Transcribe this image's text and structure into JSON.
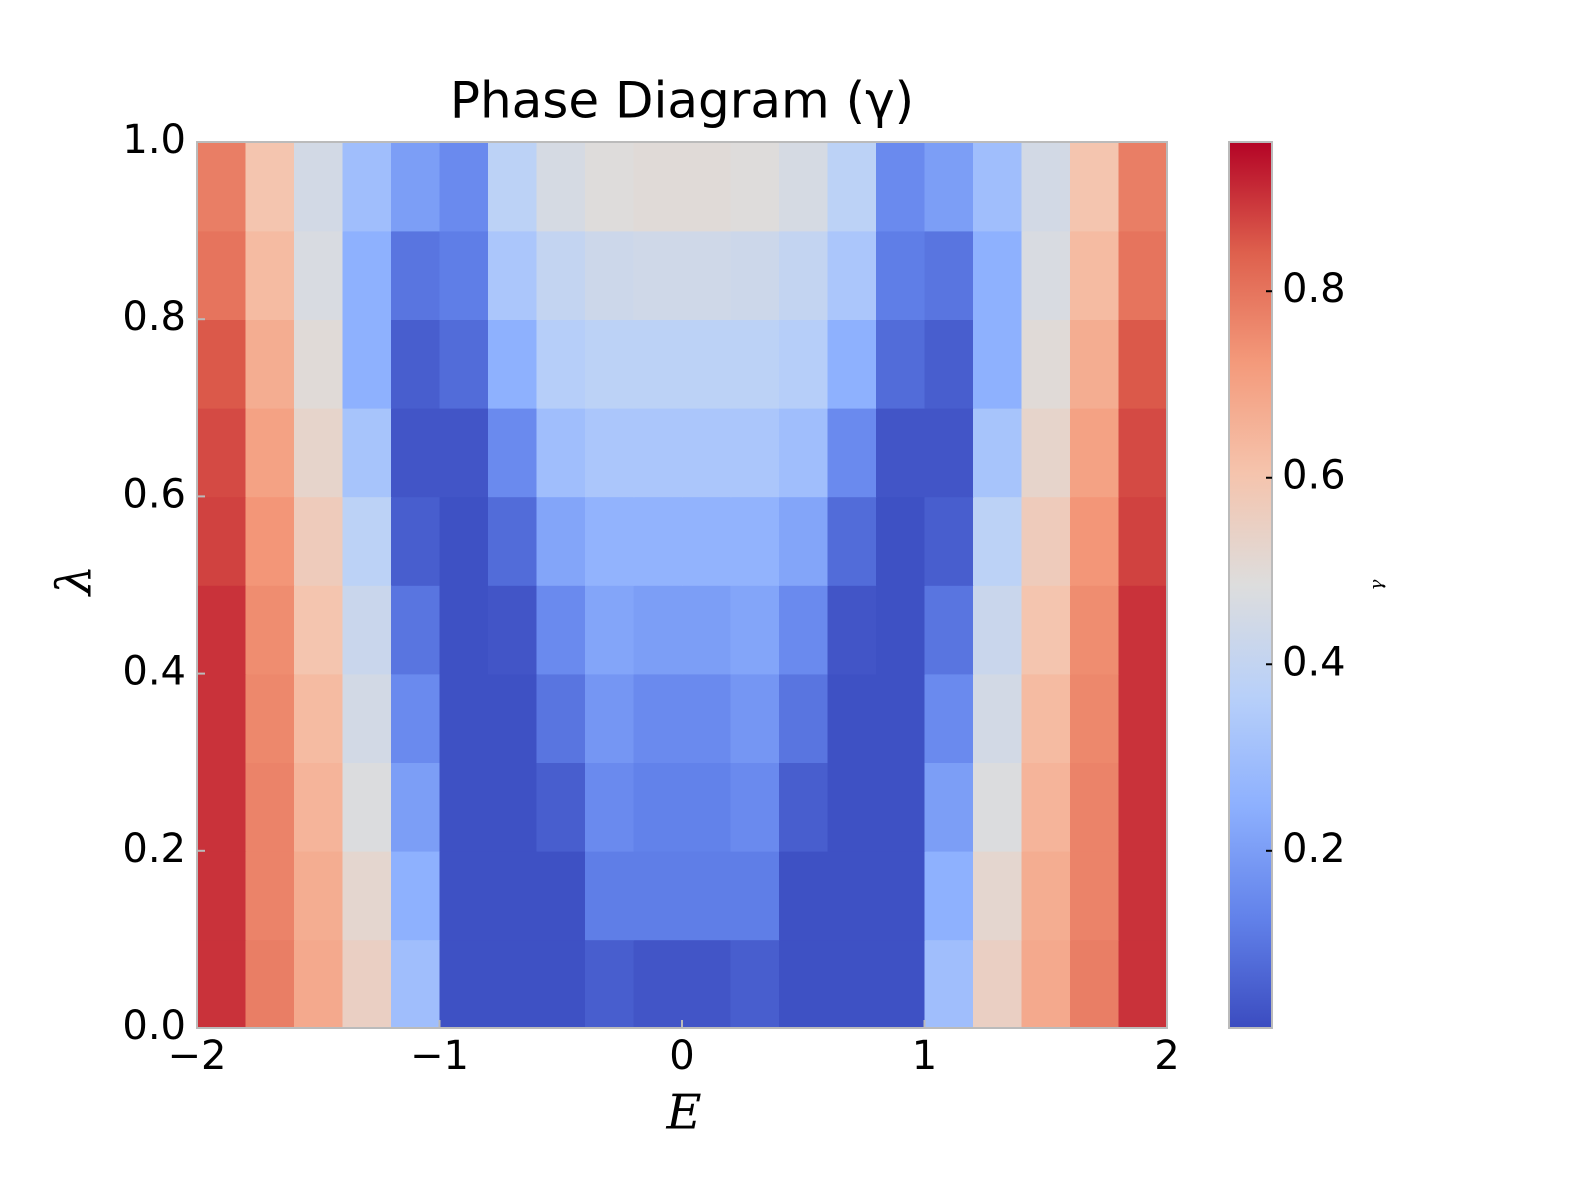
{
  "chart_data": {
    "type": "heatmap",
    "title": "Phase Diagram (γ)",
    "x_label": "E",
    "y_label": "λ",
    "colorbar_label": "γ",
    "colormap": "coolwarm",
    "x": [
      -1.9,
      -1.7,
      -1.5,
      -1.3,
      -1.1,
      -0.9,
      -0.7,
      -0.5,
      -0.3,
      -0.1,
      0.1,
      0.3,
      0.5,
      0.7,
      0.9,
      1.1,
      1.3,
      1.5,
      1.7,
      1.9
    ],
    "y": [
      0.05,
      0.15,
      0.25,
      0.35,
      0.45,
      0.55,
      0.65,
      0.75,
      0.85,
      0.95
    ],
    "z": [
      [
        0.9,
        0.78,
        0.68,
        0.55,
        0.3,
        0.02,
        0.02,
        0.02,
        0.05,
        0.03,
        0.03,
        0.05,
        0.02,
        0.02,
        0.02,
        0.3,
        0.55,
        0.68,
        0.78,
        0.9
      ],
      [
        0.9,
        0.77,
        0.67,
        0.52,
        0.25,
        0.02,
        0.02,
        0.02,
        0.12,
        0.12,
        0.12,
        0.12,
        0.02,
        0.02,
        0.02,
        0.25,
        0.52,
        0.67,
        0.77,
        0.9
      ],
      [
        0.9,
        0.77,
        0.65,
        0.48,
        0.2,
        0.02,
        0.02,
        0.05,
        0.15,
        0.13,
        0.13,
        0.15,
        0.05,
        0.02,
        0.02,
        0.2,
        0.48,
        0.65,
        0.77,
        0.9
      ],
      [
        0.9,
        0.76,
        0.63,
        0.45,
        0.15,
        0.02,
        0.02,
        0.1,
        0.18,
        0.15,
        0.15,
        0.18,
        0.1,
        0.02,
        0.02,
        0.15,
        0.45,
        0.63,
        0.76,
        0.9
      ],
      [
        0.9,
        0.75,
        0.6,
        0.42,
        0.1,
        0.02,
        0.03,
        0.15,
        0.22,
        0.2,
        0.2,
        0.22,
        0.15,
        0.03,
        0.02,
        0.1,
        0.42,
        0.6,
        0.75,
        0.9
      ],
      [
        0.88,
        0.73,
        0.57,
        0.38,
        0.05,
        0.02,
        0.08,
        0.22,
        0.26,
        0.26,
        0.26,
        0.26,
        0.22,
        0.08,
        0.02,
        0.05,
        0.38,
        0.57,
        0.73,
        0.88
      ],
      [
        0.87,
        0.7,
        0.53,
        0.32,
        0.03,
        0.03,
        0.15,
        0.3,
        0.33,
        0.33,
        0.33,
        0.33,
        0.3,
        0.15,
        0.03,
        0.03,
        0.32,
        0.53,
        0.7,
        0.87
      ],
      [
        0.85,
        0.67,
        0.5,
        0.25,
        0.05,
        0.08,
        0.25,
        0.36,
        0.38,
        0.38,
        0.38,
        0.38,
        0.36,
        0.25,
        0.08,
        0.05,
        0.25,
        0.5,
        0.67,
        0.85
      ],
      [
        0.8,
        0.63,
        0.47,
        0.25,
        0.1,
        0.12,
        0.33,
        0.4,
        0.43,
        0.44,
        0.44,
        0.43,
        0.4,
        0.33,
        0.12,
        0.1,
        0.25,
        0.47,
        0.63,
        0.8
      ],
      [
        0.78,
        0.6,
        0.45,
        0.3,
        0.2,
        0.15,
        0.38,
        0.46,
        0.49,
        0.5,
        0.5,
        0.49,
        0.46,
        0.38,
        0.15,
        0.2,
        0.3,
        0.45,
        0.6,
        0.78
      ]
    ],
    "xlim": [
      -2,
      2
    ],
    "ylim": [
      0,
      1
    ],
    "xticks": [
      {
        "value": -2,
        "label": "−2"
      },
      {
        "value": -1,
        "label": "−1"
      },
      0,
      1,
      2
    ],
    "yticks": [
      {
        "value": 0,
        "label": "0.0"
      },
      0.2,
      0.4,
      0.6,
      0.8,
      {
        "value": 1,
        "label": "1.0"
      }
    ],
    "clim": [
      0.01,
      0.96
    ],
    "cticks": [
      0.2,
      0.4,
      0.6,
      0.8
    ]
  }
}
